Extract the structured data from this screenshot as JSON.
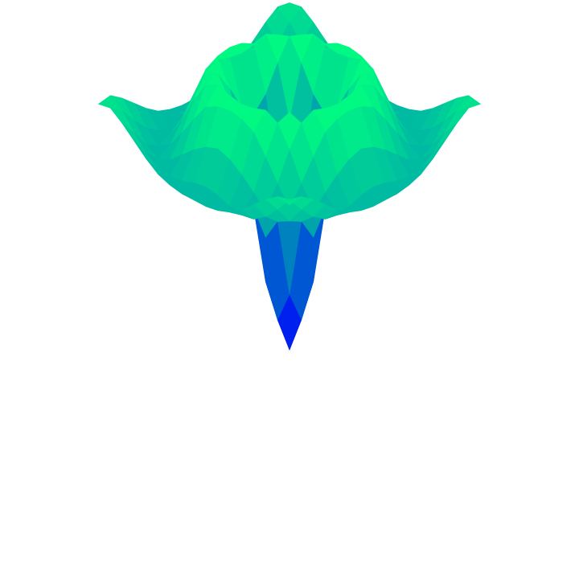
{
  "chart_data": {
    "type": "surface",
    "colormap": "winter",
    "x": [
      -8,
      -7,
      -6,
      -5,
      -4,
      -3,
      -2,
      -1,
      0,
      1,
      2,
      3,
      4,
      5,
      6,
      7,
      8
    ],
    "y": [
      -8,
      -7,
      -6,
      -5,
      -4,
      -3,
      -2,
      -1,
      0,
      1,
      2,
      3,
      4,
      5,
      6,
      7,
      8
    ],
    "z": [
      [
        0.08,
        0.09,
        0.05,
        0,
        -0.05,
        -0.09,
        -0.11,
        -0.12,
        -0.12,
        -0.12,
        -0.11,
        -0.09,
        -0.05,
        0,
        0.05,
        0.09,
        0.08
      ],
      [
        0.09,
        0.05,
        -0.02,
        -0.08,
        -0.12,
        -0.13,
        -0.12,
        -0.1,
        -0.09,
        -0.1,
        -0.12,
        -0.13,
        -0.12,
        -0.08,
        -0.02,
        0.05,
        0.09
      ],
      [
        0.05,
        -0.02,
        -0.1,
        -0.13,
        -0.11,
        -0.06,
        -0.01,
        0.03,
        0.05,
        0.03,
        -0.01,
        -0.06,
        -0.11,
        -0.13,
        -0.1,
        -0.02,
        0.05
      ],
      [
        0,
        -0.08,
        -0.13,
        -0.1,
        -0.02,
        0.07,
        0.15,
        0.18,
        0.19,
        0.18,
        0.15,
        0.07,
        -0.02,
        -0.1,
        -0.13,
        -0.08,
        0
      ],
      [
        -0.05,
        -0.12,
        -0.11,
        -0.02,
        0.1,
        0.19,
        0.22,
        0.2,
        0.19,
        0.2,
        0.22,
        0.19,
        0.1,
        -0.02,
        -0.11,
        -0.12,
        -0.05
      ],
      [
        -0.09,
        -0.13,
        -0.06,
        0.07,
        0.19,
        0.21,
        0.12,
        0.01,
        -0.05,
        0.01,
        0.12,
        0.21,
        0.19,
        0.07,
        -0.06,
        -0.13,
        -0.09
      ],
      [
        -0.11,
        -0.12,
        -0.01,
        0.15,
        0.22,
        0.12,
        -0.11,
        -0.35,
        -0.45,
        -0.35,
        -0.11,
        0.12,
        0.22,
        0.15,
        -0.01,
        -0.12,
        -0.11
      ],
      [
        -0.12,
        -0.1,
        0.03,
        0.18,
        0.2,
        0.01,
        -0.35,
        -0.7,
        -0.84,
        -0.7,
        -0.35,
        0.01,
        0.2,
        0.18,
        0.03,
        -0.1,
        -0.12
      ],
      [
        -0.12,
        -0.09,
        0.05,
        0.19,
        0.19,
        -0.05,
        -0.45,
        -0.84,
        -1,
        -0.84,
        -0.45,
        -0.05,
        0.19,
        0.19,
        0.05,
        -0.09,
        -0.12
      ],
      [
        -0.12,
        -0.1,
        0.03,
        0.18,
        0.2,
        0.01,
        -0.35,
        -0.7,
        -0.84,
        -0.7,
        -0.35,
        0.01,
        0.2,
        0.18,
        0.03,
        -0.1,
        -0.12
      ],
      [
        -0.11,
        -0.12,
        -0.01,
        0.15,
        0.22,
        0.12,
        -0.11,
        -0.35,
        -0.45,
        -0.35,
        -0.11,
        0.12,
        0.22,
        0.15,
        -0.01,
        -0.12,
        -0.11
      ],
      [
        -0.09,
        -0.13,
        -0.06,
        0.07,
        0.19,
        0.21,
        0.12,
        0.01,
        -0.05,
        0.01,
        0.12,
        0.21,
        0.19,
        0.07,
        -0.06,
        -0.13,
        -0.09
      ],
      [
        -0.05,
        -0.12,
        -0.11,
        -0.02,
        0.1,
        0.19,
        0.22,
        0.2,
        0.19,
        0.2,
        0.22,
        0.19,
        0.1,
        -0.02,
        -0.11,
        -0.12,
        -0.05
      ],
      [
        0,
        -0.08,
        -0.13,
        -0.1,
        -0.02,
        0.07,
        0.15,
        0.18,
        0.19,
        0.18,
        0.15,
        0.07,
        -0.02,
        -0.1,
        -0.13,
        -0.08,
        0
      ],
      [
        0.05,
        -0.02,
        -0.1,
        -0.13,
        -0.11,
        -0.06,
        -0.01,
        0.03,
        0.05,
        0.03,
        -0.01,
        -0.06,
        -0.11,
        -0.13,
        -0.1,
        -0.02,
        0.05
      ],
      [
        0.09,
        0.05,
        -0.02,
        -0.08,
        -0.12,
        -0.13,
        -0.12,
        -0.1,
        -0.09,
        -0.1,
        -0.12,
        -0.13,
        -0.12,
        -0.08,
        -0.02,
        0.05,
        0.09
      ],
      [
        0.08,
        0.09,
        0.05,
        0,
        -0.05,
        -0.09,
        -0.11,
        -0.12,
        -0.12,
        -0.12,
        -0.11,
        -0.09,
        -0.05,
        0,
        0.05,
        0.09,
        0.08
      ]
    ]
  }
}
